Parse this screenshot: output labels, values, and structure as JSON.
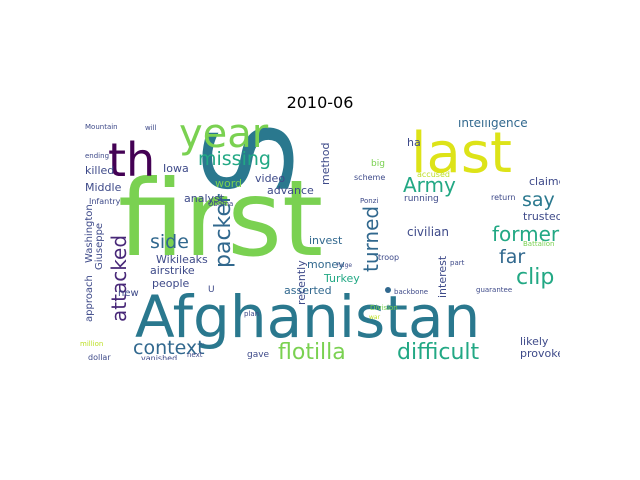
{
  "title": "2010-06",
  "words": [
    {
      "text": "first",
      "color": "#7AD151"
    },
    {
      "text": "S",
      "color": "#2A788E"
    },
    {
      "text": "Afghanistan",
      "color": "#2A788E"
    },
    {
      "text": "last",
      "color": "#DDE318"
    },
    {
      "text": "year",
      "color": "#7AD151"
    },
    {
      "text": "th",
      "color": "#440154"
    },
    {
      "text": "missing",
      "color": "#22A884"
    },
    {
      "text": "Army",
      "color": "#22A884"
    },
    {
      "text": "say",
      "color": "#2A788E"
    },
    {
      "text": "former",
      "color": "#22A884"
    },
    {
      "text": "far",
      "color": "#31688E"
    },
    {
      "text": "clip",
      "color": "#22A884"
    },
    {
      "text": "difficult",
      "color": "#22A884"
    },
    {
      "text": "flotilla",
      "color": "#7AD151"
    },
    {
      "text": "context",
      "color": "#31688E"
    },
    {
      "text": "attacked",
      "color": "#482878"
    },
    {
      "text": "side",
      "color": "#31688E"
    },
    {
      "text": "packer",
      "color": "#31688E"
    },
    {
      "text": "turned",
      "color": "#31688E"
    },
    {
      "text": "intelligence",
      "color": "#31688E"
    },
    {
      "text": "claimed",
      "color": "#3E4A89"
    },
    {
      "text": "trusted",
      "color": "#3E4A89"
    },
    {
      "text": "civilian",
      "color": "#3E4A89"
    },
    {
      "text": "Wikileaks",
      "color": "#3E4A89"
    },
    {
      "text": "airstrike",
      "color": "#3E4A89"
    },
    {
      "text": "people",
      "color": "#3E4A89"
    },
    {
      "text": "Turkey",
      "color": "#22A884"
    },
    {
      "text": "money",
      "color": "#31688E"
    },
    {
      "text": "invest",
      "color": "#31688E"
    },
    {
      "text": "asserted",
      "color": "#31688E"
    },
    {
      "text": "advance",
      "color": "#3E4A89"
    },
    {
      "text": "video",
      "color": "#3E4A89"
    },
    {
      "text": "analyst",
      "color": "#3E4A89"
    },
    {
      "text": "word",
      "color": "#7AD151"
    },
    {
      "text": "Iowa",
      "color": "#3E4A89"
    },
    {
      "text": "killed",
      "color": "#3E4A89"
    },
    {
      "text": "Middle",
      "color": "#3E4A89"
    },
    {
      "text": "method",
      "color": "#3E4A89"
    },
    {
      "text": "recently",
      "color": "#3E4A89"
    },
    {
      "text": "interest",
      "color": "#3E4A89"
    },
    {
      "text": "likely",
      "color": "#3E4A89"
    },
    {
      "text": "provoke",
      "color": "#3E4A89"
    },
    {
      "text": "gave",
      "color": "#3E4A89"
    },
    {
      "text": "approach",
      "color": "#3E4A89"
    },
    {
      "text": "Washington",
      "color": "#3E4A89"
    },
    {
      "text": "Giuseppe",
      "color": "#3E4A89"
    },
    {
      "text": "Infantry",
      "color": "#3E4A89"
    },
    {
      "text": "ending",
      "color": "#3E4A89"
    },
    {
      "text": "Mountain",
      "color": "#3E4A89"
    },
    {
      "text": "will",
      "color": "#3E4A89"
    },
    {
      "text": "ha",
      "color": "#3E4A89"
    },
    {
      "text": "big",
      "color": "#7AD151"
    },
    {
      "text": "accused",
      "color": "#BDDF26"
    },
    {
      "text": "scheme",
      "color": "#3E4A89"
    },
    {
      "text": "running",
      "color": "#3E4A89"
    },
    {
      "text": "return",
      "color": "#3E4A89"
    },
    {
      "text": "Battalion",
      "color": "#7AD151"
    },
    {
      "text": "additional",
      "color": "#7AD151"
    },
    {
      "text": "Obama",
      "color": "#3E4A89"
    },
    {
      "text": "Ponzi",
      "color": "#3E4A89"
    },
    {
      "text": "huge",
      "color": "#3E4A89"
    },
    {
      "text": "troop",
      "color": "#3E4A89"
    },
    {
      "text": "part",
      "color": "#3E4A89"
    },
    {
      "text": "backbone",
      "color": "#3E4A89"
    },
    {
      "text": "guarantee",
      "color": "#3E4A89"
    },
    {
      "text": "Division",
      "color": "#7AD151"
    },
    {
      "text": "war",
      "color": "#BDDF26"
    },
    {
      "text": "President",
      "color": "#3E4A89"
    },
    {
      "text": "plan",
      "color": "#3E4A89"
    },
    {
      "text": "new",
      "color": "#3E4A89"
    },
    {
      "text": "million",
      "color": "#BDDF26"
    },
    {
      "text": "dollar",
      "color": "#3E4A89"
    },
    {
      "text": "vanished",
      "color": "#3E4A89"
    },
    {
      "text": "next",
      "color": "#3E4A89"
    },
    {
      "text": "U",
      "color": "#3E4A89"
    }
  ]
}
